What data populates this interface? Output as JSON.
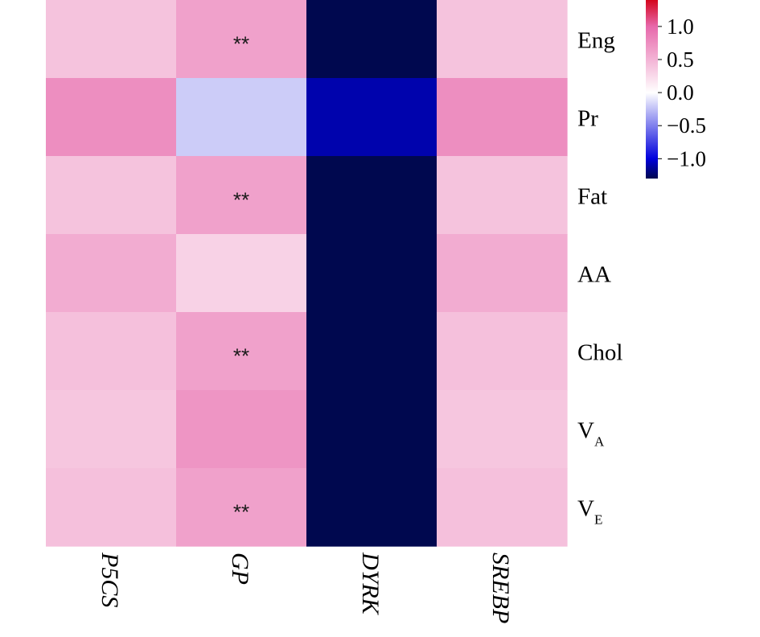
{
  "chart_data": {
    "type": "heatmap",
    "title": "",
    "xlabel": "",
    "ylabel": "",
    "columns": [
      "P5CS",
      "GP",
      "DYRK",
      "SREBP"
    ],
    "rows": [
      {
        "label": "Eng",
        "sub": ""
      },
      {
        "label": "Pr",
        "sub": ""
      },
      {
        "label": "Fat",
        "sub": ""
      },
      {
        "label": "AA",
        "sub": ""
      },
      {
        "label": "Chol",
        "sub": ""
      },
      {
        "label": "V",
        "sub": "A"
      },
      {
        "label": "V",
        "sub": "E"
      }
    ],
    "values": [
      [
        0.4,
        0.62,
        -1.3,
        0.4
      ],
      [
        0.75,
        -0.2,
        -1.1,
        0.75
      ],
      [
        0.4,
        0.62,
        -1.3,
        0.4
      ],
      [
        0.55,
        0.3,
        -1.3,
        0.55
      ],
      [
        0.42,
        0.62,
        -1.3,
        0.42
      ],
      [
        0.38,
        0.7,
        -1.3,
        0.38
      ],
      [
        0.42,
        0.62,
        -1.3,
        0.42
      ]
    ],
    "significance": [
      [
        "",
        "**",
        "",
        ""
      ],
      [
        "",
        "",
        "",
        ""
      ],
      [
        "",
        "**",
        "",
        ""
      ],
      [
        "",
        "",
        "",
        ""
      ],
      [
        "",
        "**",
        "",
        ""
      ],
      [
        "",
        "",
        "",
        ""
      ],
      [
        "",
        "**",
        "",
        ""
      ]
    ],
    "colorbar": {
      "vmin": -1.3,
      "vmax": 1.4,
      "ticks": [
        1.0,
        0.5,
        0.0,
        -0.5,
        -1.0
      ],
      "tick_labels": [
        "1.0",
        "0.5",
        "0.0",
        "−0.5",
        "−1.0"
      ],
      "colors": {
        "low_end": "#00084f",
        "low": "#0000dc",
        "mid": "#ffffff",
        "high": "#e768ab",
        "high_end": "#d4061c"
      }
    }
  }
}
